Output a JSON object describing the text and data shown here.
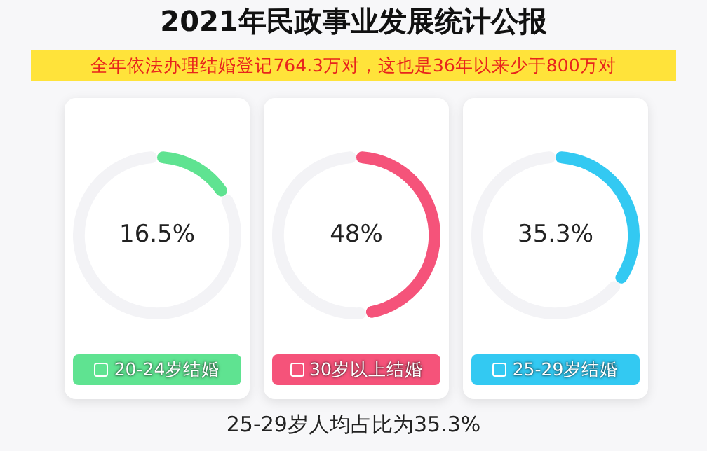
{
  "chart_data": [
    {
      "type": "donut",
      "title": "2021年民政事业发展统计公报",
      "subtitle": "全年依法办理结婚登记764.3万对，这也是36年以来少于800万对",
      "annotations": [
        "25-29岁人均占比为35.3%"
      ],
      "categories": [
        "20-24岁结婚",
        null
      ],
      "values": [
        16.5,
        83.5
      ],
      "colors": [
        "#5fe391",
        "#f3f3f6"
      ],
      "value_labels": [
        "16.5%",
        null
      ],
      "legend": "bottom"
    },
    {
      "type": "donut",
      "categories": [
        "30岁以上结婚",
        null
      ],
      "values": [
        48,
        52
      ],
      "colors": [
        "#f5537a",
        "#f3f3f6"
      ],
      "value_labels": [
        "48%",
        null
      ],
      "legend": "bottom"
    },
    {
      "type": "donut",
      "categories": [
        "25-29岁结婚",
        null
      ],
      "values": [
        35.3,
        64.7
      ],
      "colors": [
        "#33c9f2",
        "#f3f3f6"
      ],
      "value_labels": [
        "35.3%",
        null
      ],
      "legend": "bottom"
    }
  ]
}
